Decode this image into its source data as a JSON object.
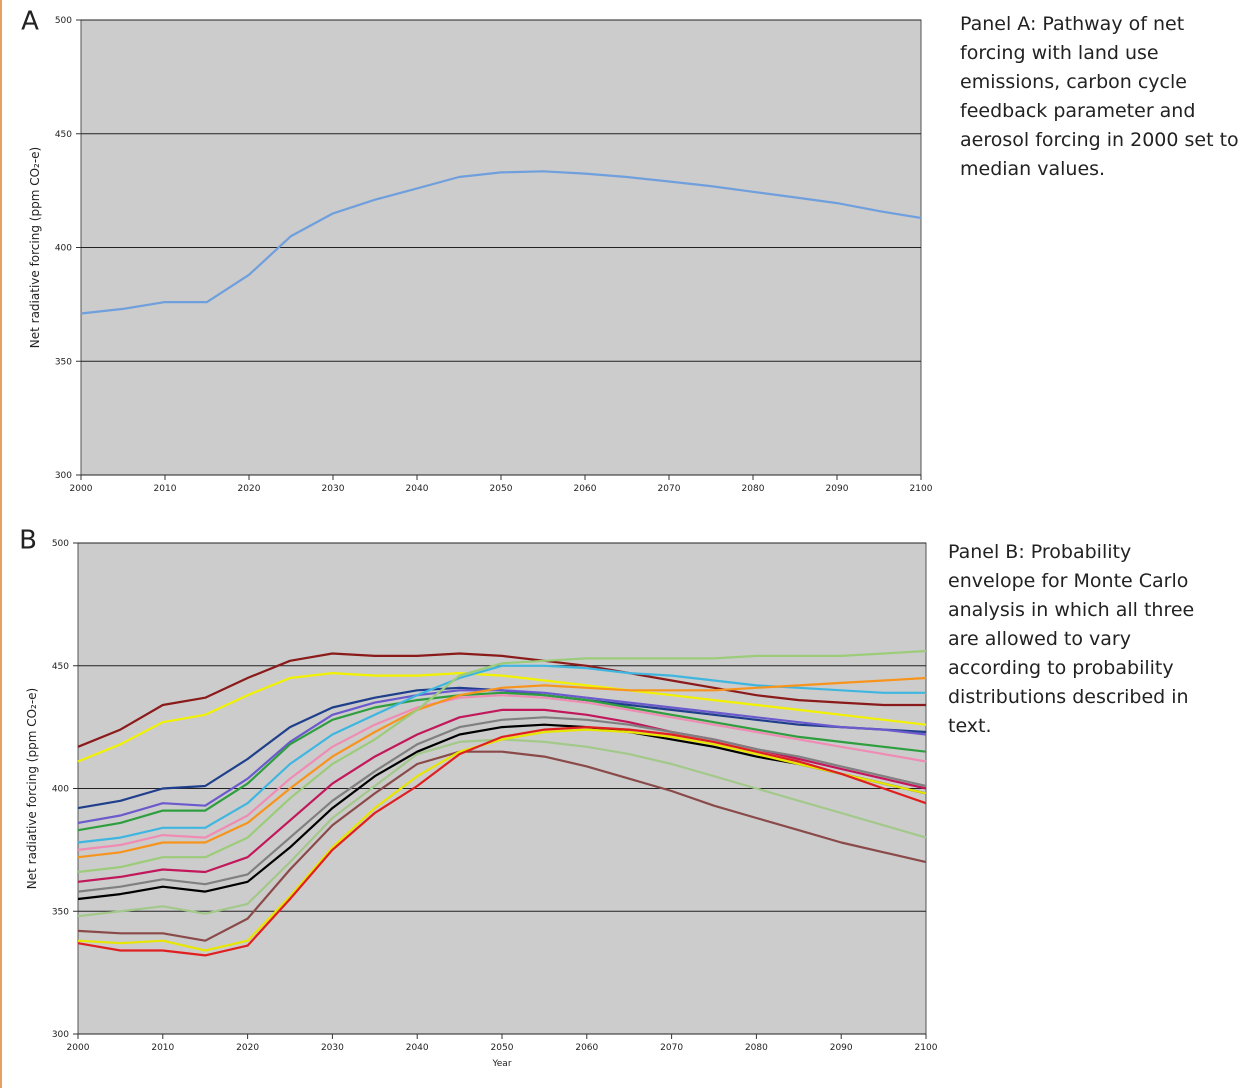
{
  "chart_data": [
    {
      "type": "line",
      "panel_label": "A",
      "description": "Panel A: Pathway of net forcing with land use emissions, carbon cycle feedback parameter and aerosol forcing in 2000 set to median values.",
      "y_label": "Net radiative forcing (ppm CO₂-e)",
      "x": [
        2000,
        2005,
        2010,
        2015,
        2020,
        2025,
        2030,
        2035,
        2040,
        2045,
        2050,
        2055,
        2060,
        2065,
        2070,
        2075,
        2080,
        2085,
        2090,
        2095,
        2100
      ],
      "values": [
        371,
        373,
        376,
        376,
        388,
        405,
        415,
        421,
        426,
        431,
        433,
        433.5,
        432.5,
        431,
        429,
        427,
        424.5,
        422,
        419.5,
        416,
        413
      ],
      "color": "#6f9fdc",
      "xlim": [
        2000,
        2100
      ],
      "xticks": [
        2000,
        2010,
        2020,
        2030,
        2040,
        2050,
        2060,
        2070,
        2080,
        2090,
        2100
      ],
      "ylim": [
        300,
        500
      ],
      "yticks": [
        300,
        350,
        400,
        450,
        500
      ],
      "grid": true
    },
    {
      "type": "line",
      "panel_label": "B",
      "description": "Panel B: Probability envelope for Monte Carlo analysis in which all three are allowed to vary according to probability distributions described in text.",
      "y_label": "Net radiative forcing (ppm CO₂-e)",
      "x_label": "Year",
      "x": [
        2000,
        2005,
        2010,
        2015,
        2020,
        2025,
        2030,
        2035,
        2040,
        2045,
        2050,
        2055,
        2060,
        2065,
        2070,
        2075,
        2080,
        2085,
        2090,
        2095,
        2100
      ],
      "series": [
        {
          "color": "#8b1a1a",
          "values": [
            417,
            424,
            434,
            437,
            445,
            452,
            455,
            454,
            454,
            455,
            454,
            452,
            450,
            447,
            444,
            441,
            438,
            436,
            435,
            434,
            434
          ]
        },
        {
          "color": "#f2f200",
          "values": [
            411,
            418,
            427,
            430,
            438,
            445,
            447,
            446,
            446,
            447,
            446,
            444,
            442,
            440,
            438,
            436,
            434,
            432,
            430,
            428,
            426
          ]
        },
        {
          "color": "#1f3f8c",
          "values": [
            392,
            395,
            400,
            401,
            412,
            425,
            433,
            437,
            440,
            441,
            440,
            438,
            436,
            434,
            432,
            430,
            428,
            426,
            425,
            424,
            423
          ]
        },
        {
          "color": "#6a5acd",
          "values": [
            386,
            389,
            394,
            393,
            404,
            419,
            430,
            435,
            438,
            440,
            440,
            439,
            437,
            435,
            433,
            431,
            429,
            427,
            425,
            424,
            422
          ]
        },
        {
          "color": "#2e9e3e",
          "values": [
            383,
            386,
            391,
            391,
            402,
            418,
            428,
            433,
            436,
            438,
            439,
            438,
            436,
            433,
            430,
            427,
            424,
            421,
            419,
            417,
            415
          ]
        },
        {
          "color": "#3fb6e0",
          "values": [
            378,
            380,
            384,
            384,
            394,
            410,
            422,
            430,
            438,
            445,
            450,
            450,
            449,
            447,
            446,
            444,
            442,
            441,
            440,
            439,
            439
          ]
        },
        {
          "color": "#f08cb4",
          "values": [
            375,
            377,
            381,
            380,
            389,
            404,
            417,
            426,
            433,
            437,
            438,
            437,
            435,
            432,
            429,
            426,
            423,
            420,
            417,
            414,
            411
          ]
        },
        {
          "color": "#f7941d",
          "values": [
            372,
            374,
            378,
            378,
            386,
            400,
            413,
            423,
            432,
            438,
            441,
            442,
            441,
            440,
            440,
            440,
            441,
            442,
            443,
            444,
            445
          ]
        },
        {
          "color": "#9ccc7a",
          "values": [
            366,
            368,
            372,
            372,
            380,
            396,
            410,
            420,
            432,
            446,
            451,
            452,
            453,
            453,
            453,
            453,
            454,
            454,
            454,
            455,
            456
          ]
        },
        {
          "color": "#c2185b",
          "values": [
            362,
            364,
            367,
            366,
            372,
            387,
            402,
            413,
            422,
            429,
            432,
            432,
            430,
            427,
            423,
            420,
            416,
            412,
            408,
            404,
            400
          ]
        },
        {
          "color": "#808080",
          "values": [
            358,
            360,
            363,
            361,
            365,
            380,
            395,
            407,
            418,
            425,
            428,
            429,
            428,
            426,
            423,
            420,
            416,
            413,
            409,
            405,
            401
          ]
        },
        {
          "color": "#000000",
          "values": [
            355,
            357,
            360,
            358,
            362,
            376,
            392,
            405,
            415,
            422,
            425,
            426,
            425,
            423,
            420,
            417,
            413,
            410,
            406,
            402,
            398
          ]
        },
        {
          "color": "#a3c98a",
          "values": [
            348,
            350,
            352,
            349,
            353,
            370,
            388,
            401,
            414,
            419,
            420,
            419,
            417,
            414,
            410,
            405,
            400,
            395,
            390,
            385,
            380
          ]
        },
        {
          "color": "#8b4a4a",
          "values": [
            342,
            341,
            341,
            338,
            347,
            367,
            385,
            398,
            410,
            415,
            415,
            413,
            409,
            404,
            399,
            393,
            388,
            383,
            378,
            374,
            370
          ]
        },
        {
          "color": "#e6e600",
          "values": [
            338,
            337,
            338,
            334,
            338,
            356,
            376,
            392,
            405,
            415,
            420,
            423,
            424,
            423,
            421,
            418,
            414,
            410,
            406,
            402,
            398
          ]
        },
        {
          "color": "#e02020",
          "values": [
            337,
            334,
            334,
            332,
            336,
            355,
            375,
            390,
            401,
            414,
            421,
            424,
            425,
            424,
            422,
            419,
            415,
            411,
            406,
            400,
            394
          ]
        }
      ],
      "xlim": [
        2000,
        2100
      ],
      "xticks": [
        2000,
        2010,
        2020,
        2030,
        2040,
        2050,
        2060,
        2070,
        2080,
        2090,
        2100
      ],
      "ylim": [
        300,
        500
      ],
      "yticks": [
        300,
        350,
        400,
        450,
        500
      ],
      "grid": true
    }
  ]
}
